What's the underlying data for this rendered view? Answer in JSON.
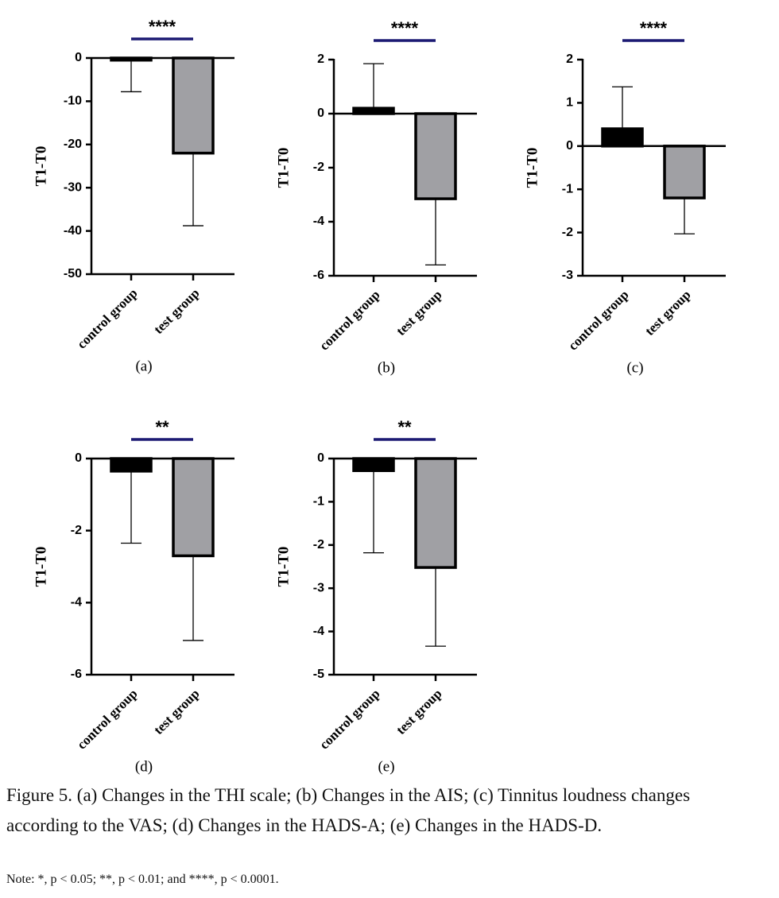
{
  "chart_data": [
    {
      "type": "bar",
      "label": "(a)",
      "ylabel": "T1-T0",
      "annotation": "****",
      "annotation_color": "#1c1a73",
      "categories": [
        "control group",
        "test group"
      ],
      "values": [
        -0.5,
        -22
      ],
      "errors": [
        7.3,
        16.8
      ],
      "colors": [
        "#000000",
        "#a0a0a4"
      ],
      "ylim": [
        -50,
        0
      ],
      "yticks": [
        0,
        -10,
        -20,
        -30,
        -40,
        -50
      ]
    },
    {
      "type": "bar",
      "label": "(b)",
      "ylabel": "T1-T0",
      "annotation": "****",
      "annotation_color": "#1c1a73",
      "categories": [
        "control group",
        "test group"
      ],
      "values": [
        0.2,
        -3.15
      ],
      "errors": [
        1.65,
        2.45
      ],
      "colors": [
        "#000000",
        "#a0a0a4"
      ],
      "ylim": [
        -6,
        2
      ],
      "yticks": [
        2,
        0,
        -2,
        -4,
        -6
      ]
    },
    {
      "type": "bar",
      "label": "(c)",
      "ylabel": "T1-T0",
      "annotation": "****",
      "annotation_color": "#1c1a73",
      "categories": [
        "control group",
        "test group"
      ],
      "values": [
        0.4,
        -1.2
      ],
      "errors": [
        0.97,
        0.83
      ],
      "colors": [
        "#000000",
        "#a0a0a4"
      ],
      "ylim": [
        -3,
        2
      ],
      "yticks": [
        2,
        1,
        0,
        -1,
        -2,
        -3
      ]
    },
    {
      "type": "bar",
      "label": "(d)",
      "ylabel": "T1-T0",
      "annotation": "**",
      "annotation_color": "#1c1a73",
      "categories": [
        "control group",
        "test group"
      ],
      "values": [
        -0.35,
        -2.7
      ],
      "errors": [
        2.0,
        2.35
      ],
      "colors": [
        "#000000",
        "#a0a0a4"
      ],
      "ylim": [
        -6,
        0
      ],
      "yticks": [
        0,
        -2,
        -4,
        -6
      ]
    },
    {
      "type": "bar",
      "label": "(e)",
      "ylabel": "T1-T0",
      "annotation": "**",
      "annotation_color": "#1c1a73",
      "categories": [
        "control group",
        "test group"
      ],
      "values": [
        -0.28,
        -2.52
      ],
      "errors": [
        1.9,
        1.82
      ],
      "colors": [
        "#000000",
        "#a0a0a4"
      ],
      "ylim": [
        -5,
        0
      ],
      "yticks": [
        0,
        -1,
        -2,
        -3,
        -4,
        -5
      ]
    }
  ],
  "caption": "Figure 5. (a) Changes in the THI scale; (b) Changes in the AIS; (c) Tinnitus loudness changes according to the VAS; (d) Changes in the HADS-A; (e) Changes in the HADS-D.",
  "note": "Note: *, p < 0.05; **, p < 0.01; and ****, p < 0.0001."
}
